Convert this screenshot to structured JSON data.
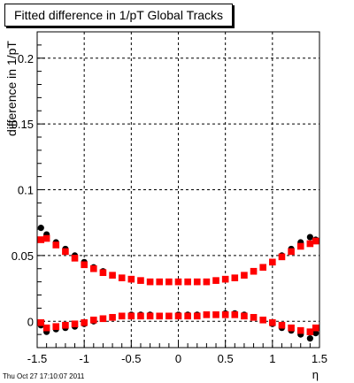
{
  "title": "Fitted difference in 1/pT  Global Tracks",
  "footer_timestamp": "Thu Oct 27 17:10:07 2011",
  "chart_data": {
    "type": "scatter",
    "xlabel": "η",
    "ylabel": "difference in 1/pT",
    "xlim": [
      -1.5,
      1.5
    ],
    "ylim": [
      -0.02,
      0.22
    ],
    "x_ticks": [
      "-1.5",
      "-1",
      "-0.5",
      "0",
      "0.5",
      "1",
      "1.5"
    ],
    "y_ticks": [
      "0",
      "0.05",
      "0.1",
      "0.15",
      "0.2"
    ],
    "grid": true,
    "series": [
      {
        "color": "#000000",
        "marker": "circle",
        "x": [
          -1.46,
          -1.4,
          -1.3,
          -1.2,
          -1.1,
          -1.0,
          -0.9,
          -0.8,
          -0.7,
          -0.6,
          -0.5,
          -0.4,
          -0.3,
          -0.2,
          -0.1,
          0.0,
          0.1,
          0.2,
          0.3,
          0.4,
          0.5,
          0.6,
          0.7,
          0.8,
          0.9,
          1.0,
          1.1,
          1.2,
          1.3,
          1.4,
          1.46
        ],
        "y": [
          0.071,
          0.066,
          0.06,
          0.055,
          0.05,
          0.045,
          0.041,
          0.038,
          0.035,
          0.033,
          0.032,
          0.031,
          0.03,
          0.03,
          0.03,
          0.03,
          0.03,
          0.03,
          0.03,
          0.031,
          0.032,
          0.033,
          0.035,
          0.038,
          0.041,
          0.045,
          0.05,
          0.055,
          0.06,
          0.064,
          0.062
        ]
      },
      {
        "color": "#000000",
        "marker": "circle",
        "x": [
          -1.46,
          -1.4,
          -1.3,
          -1.2,
          -1.1,
          -1.0,
          -0.9,
          -0.8,
          -0.7,
          -0.6,
          -0.5,
          -0.4,
          -0.3,
          -0.2,
          -0.1,
          0.0,
          0.1,
          0.2,
          0.3,
          0.4,
          0.5,
          0.6,
          0.7,
          0.8,
          0.9,
          1.0,
          1.1,
          1.2,
          1.3,
          1.4,
          1.46
        ],
        "y": [
          -0.003,
          -0.008,
          -0.006,
          -0.005,
          -0.004,
          -0.002,
          0.0,
          0.002,
          0.003,
          0.004,
          0.005,
          0.005,
          0.005,
          0.004,
          0.004,
          0.005,
          0.005,
          0.005,
          0.005,
          0.005,
          0.006,
          0.006,
          0.005,
          0.003,
          0.001,
          -0.002,
          -0.005,
          -0.007,
          -0.01,
          -0.013,
          -0.009
        ]
      },
      {
        "color": "#ff0000",
        "marker": "square",
        "x": [
          -1.46,
          -1.4,
          -1.3,
          -1.2,
          -1.1,
          -1.0,
          -0.9,
          -0.8,
          -0.7,
          -0.6,
          -0.5,
          -0.4,
          -0.3,
          -0.2,
          -0.1,
          0.0,
          0.1,
          0.2,
          0.3,
          0.4,
          0.5,
          0.6,
          0.7,
          0.8,
          0.9,
          1.0,
          1.1,
          1.2,
          1.3,
          1.4,
          1.46
        ],
        "y": [
          0.062,
          0.063,
          0.058,
          0.053,
          0.048,
          0.043,
          0.04,
          0.037,
          0.035,
          0.033,
          0.032,
          0.031,
          0.03,
          0.03,
          0.03,
          0.03,
          0.03,
          0.03,
          0.03,
          0.031,
          0.032,
          0.033,
          0.035,
          0.038,
          0.041,
          0.045,
          0.049,
          0.053,
          0.057,
          0.059,
          0.061
        ]
      },
      {
        "color": "#ff0000",
        "marker": "square",
        "x": [
          -1.46,
          -1.4,
          -1.3,
          -1.2,
          -1.1,
          -1.0,
          -0.9,
          -0.8,
          -0.7,
          -0.6,
          -0.5,
          -0.4,
          -0.3,
          -0.2,
          -0.1,
          0.0,
          0.1,
          0.2,
          0.3,
          0.4,
          0.5,
          0.6,
          0.7,
          0.8,
          0.9,
          1.0,
          1.1,
          1.2,
          1.3,
          1.4,
          1.46
        ],
        "y": [
          -0.001,
          -0.005,
          -0.004,
          -0.003,
          -0.002,
          -0.001,
          0.001,
          0.002,
          0.003,
          0.004,
          0.004,
          0.004,
          0.004,
          0.004,
          0.004,
          0.004,
          0.004,
          0.004,
          0.005,
          0.005,
          0.005,
          0.005,
          0.004,
          0.003,
          0.001,
          -0.001,
          -0.003,
          -0.005,
          -0.007,
          -0.008,
          -0.005
        ]
      }
    ]
  }
}
